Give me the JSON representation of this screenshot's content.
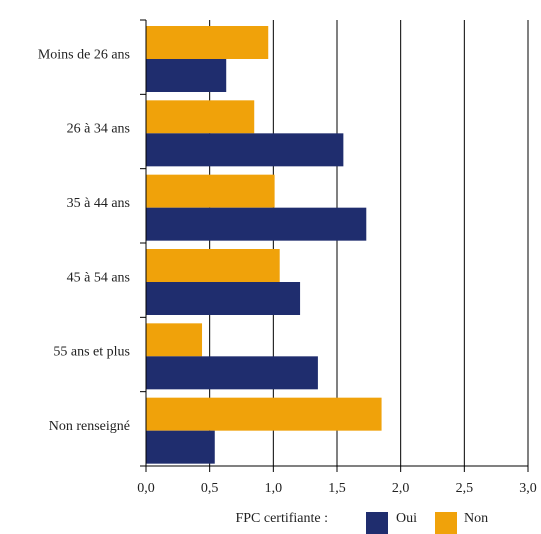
{
  "chart_data": {
    "type": "bar",
    "orientation": "horizontal",
    "title": "",
    "xlabel": "",
    "ylabel": "",
    "categories": [
      "Moins de 26 ans",
      "26 à 34 ans",
      "35 à 44 ans",
      "45 à 54 ans",
      "55 ans et plus",
      "Non renseigné"
    ],
    "series": [
      {
        "name": "Oui",
        "color": "#1f2d6e",
        "values": [
          0.63,
          1.55,
          1.73,
          1.21,
          1.35,
          0.54
        ]
      },
      {
        "name": "Non",
        "color": "#f0a20a",
        "values": [
          0.96,
          0.85,
          1.01,
          1.05,
          0.44,
          1.85
        ]
      }
    ],
    "xlim": [
      0,
      3.0
    ],
    "xticks": [
      0,
      0.5,
      1.0,
      1.5,
      2.0,
      2.5,
      3.0
    ],
    "xtick_labels": [
      "0,0",
      "0,5",
      "1,0",
      "1,5",
      "2,0",
      "2,5",
      "3,0"
    ],
    "grid": "vertical",
    "legend": {
      "title": "FPC certifiante :",
      "position": "bottom"
    }
  }
}
